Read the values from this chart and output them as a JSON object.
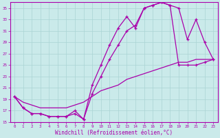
{
  "xlabel": "Windchill (Refroidissement éolien,°C)",
  "bg_color": "#caeaea",
  "line_color": "#aa00aa",
  "grid_color": "#aad4d4",
  "ylim": [
    15,
    36
  ],
  "xlim": [
    -0.5,
    23.5
  ],
  "yticks": [
    15,
    17,
    19,
    21,
    23,
    25,
    27,
    29,
    31,
    33,
    35
  ],
  "xticks": [
    0,
    1,
    2,
    3,
    4,
    5,
    6,
    7,
    8,
    9,
    10,
    11,
    12,
    13,
    14,
    15,
    16,
    17,
    18,
    19,
    20,
    21,
    22,
    23
  ],
  "line1_x": [
    0,
    1,
    2,
    3,
    4,
    5,
    6,
    7,
    8,
    9,
    10,
    11,
    12,
    13,
    14,
    15,
    16,
    17,
    18,
    19,
    20,
    21,
    22,
    23
  ],
  "line1_y": [
    19.5,
    17.5,
    16.5,
    16.5,
    16.0,
    16.0,
    16.0,
    16.5,
    15.5,
    21.5,
    25.0,
    28.5,
    31.5,
    33.5,
    31.5,
    35.0,
    35.5,
    36.0,
    35.5,
    35.0,
    29.5,
    33.0,
    29.0,
    26.0
  ],
  "line2_x": [
    0,
    1,
    2,
    3,
    4,
    5,
    6,
    7,
    8,
    9,
    10,
    11,
    12,
    13,
    14,
    15,
    16,
    17,
    18,
    19,
    20,
    21,
    22,
    23
  ],
  "line2_y": [
    19.5,
    17.5,
    16.5,
    16.5,
    16.0,
    16.0,
    16.0,
    17.0,
    15.5,
    20.0,
    23.0,
    26.0,
    28.5,
    31.0,
    32.0,
    35.0,
    35.5,
    36.0,
    35.5,
    25.0,
    25.0,
    25.0,
    25.5,
    26.0
  ],
  "line3_x": [
    0,
    1,
    2,
    3,
    4,
    5,
    6,
    7,
    8,
    9,
    10,
    11,
    12,
    13,
    14,
    15,
    16,
    17,
    18,
    19,
    20,
    21,
    22,
    23
  ],
  "line3_y": [
    19.5,
    18.5,
    18.0,
    17.5,
    17.5,
    17.5,
    17.5,
    18.0,
    18.5,
    19.5,
    20.5,
    21.0,
    21.5,
    22.5,
    23.0,
    23.5,
    24.0,
    24.5,
    25.0,
    25.5,
    25.5,
    26.0,
    26.0,
    26.0
  ]
}
